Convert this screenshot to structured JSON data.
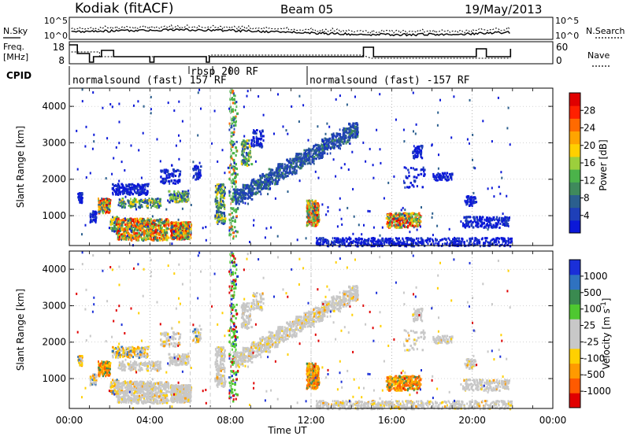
{
  "header": {
    "station": "Kodiak (fitACF)",
    "beam": "Beam 05",
    "date": "19/May/2013"
  },
  "noise_panel": {
    "left_label": "N.Sky",
    "right_label": "N.Search",
    "left_ticks": [
      "10^5",
      "10^0"
    ],
    "right_ticks": [
      "10^5",
      "10^0"
    ]
  },
  "freq_panel": {
    "left_label_line1": "Freq.",
    "left_label_line2": "[MHz]",
    "right_label": "Nave",
    "left_ticks": [
      "18",
      "8"
    ],
    "right_ticks": [
      "60",
      "0"
    ]
  },
  "cpid": {
    "label": "CPID",
    "segments": [
      {
        "text": "normalsound (fast) 157 RF",
        "start_h": 0.0
      },
      {
        "text": "rbsp 200 RF",
        "start_h": 6.9
      },
      {
        "text": "normalsound (fast) -157 RF",
        "start_h": 12.0
      }
    ]
  },
  "chart_data": [
    {
      "type": "heatmap",
      "title": "",
      "xlabel": "",
      "ylabel": "Slant Range [km]",
      "xlim": [
        0,
        24
      ],
      "ylim": [
        180,
        4500
      ],
      "yticks": [
        "1000",
        "2000",
        "3000",
        "4000"
      ],
      "colorbar": {
        "label": "Power [dB]",
        "ticks": [
          "4",
          "8",
          "12",
          "16",
          "20",
          "24",
          "28"
        ],
        "colors": [
          "#0b18d8",
          "#1e3fb8",
          "#2b5f8e",
          "#3f8a5c",
          "#4bb34a",
          "#9ccf3c",
          "#ffd000",
          "#ffa400",
          "#ff6a00",
          "#ff2000",
          "#e00000"
        ]
      },
      "features": [
        {
          "name": "near-range echoes",
          "t": [
            3.0,
            6.0
          ],
          "range": [
            400,
            900
          ],
          "power_db": [
            12,
            28
          ]
        },
        {
          "name": "rising band",
          "t": [
            8.0,
            14.2
          ],
          "range": [
            1500,
            3500
          ],
          "power_db": [
            4,
            16
          ]
        },
        {
          "name": "12 UT patch",
          "t": [
            11.8,
            12.3
          ],
          "range": [
            700,
            1400
          ],
          "power_db": [
            16,
            28
          ]
        },
        {
          "name": "16-17 UT patch",
          "t": [
            15.8,
            17.5
          ],
          "range": [
            700,
            1100
          ],
          "power_db": [
            8,
            24
          ]
        }
      ]
    },
    {
      "type": "heatmap",
      "title": "",
      "xlabel": "Time UT",
      "ylabel": "Slant Range [km]",
      "xlim": [
        0,
        24
      ],
      "ylim": [
        180,
        4500
      ],
      "xticks": [
        "00:00",
        "04:00",
        "08:00",
        "12:00",
        "16:00",
        "20:00",
        "00:00"
      ],
      "yticks": [
        "1000",
        "2000",
        "3000",
        "4000"
      ],
      "colorbar": {
        "label": "Velocity [m s",
        "label_sup": "-1",
        "label_end": "]",
        "ticks": [
          "1000",
          "500",
          "100",
          "25",
          "-25",
          "-100",
          "-500",
          "-1000"
        ],
        "colors": [
          "#1a2fd8",
          "#2f72c0",
          "#3a8a50",
          "#4ec830",
          "#c8c8c8",
          "#c8c8c8",
          "#ffd000",
          "#ff9a00",
          "#ff5a00",
          "#e00000"
        ]
      },
      "features": [
        {
          "name": "ground scatter",
          "t": [
            3.0,
            6.0
          ],
          "range": [
            400,
            900
          ],
          "velocity": [
            -25,
            25
          ]
        },
        {
          "name": "rising band",
          "t": [
            8.0,
            14.2
          ],
          "range": [
            1500,
            3500
          ],
          "velocity": [
            -25,
            25
          ]
        },
        {
          "name": "12 UT patch",
          "t": [
            11.8,
            12.3
          ],
          "range": [
            700,
            1400
          ],
          "velocity": [
            -500,
            100
          ]
        },
        {
          "name": "16-17 UT patch",
          "t": [
            15.8,
            17.5
          ],
          "range": [
            700,
            1100
          ],
          "velocity": [
            -500,
            -100
          ]
        }
      ]
    }
  ],
  "colors": {
    "ground": "#c8c8c8",
    "dashed_marker": "#cccccc"
  }
}
